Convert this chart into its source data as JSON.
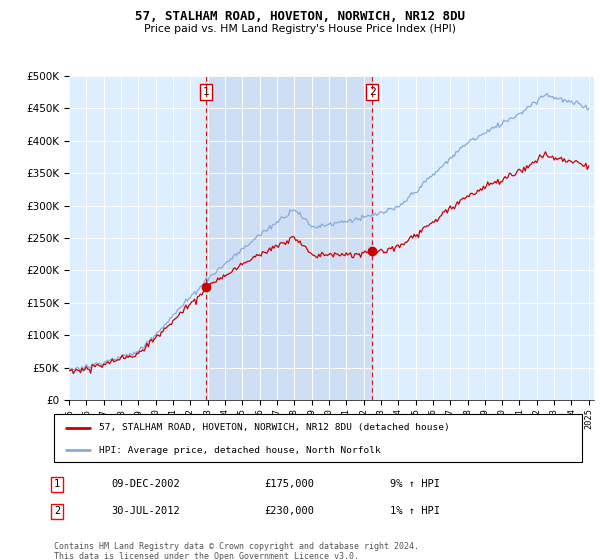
{
  "title": "57, STALHAM ROAD, HOVETON, NORWICH, NR12 8DU",
  "subtitle": "Price paid vs. HM Land Registry's House Price Index (HPI)",
  "legend_line1": "57, STALHAM ROAD, HOVETON, NORWICH, NR12 8DU (detached house)",
  "legend_line2": "HPI: Average price, detached house, North Norfolk",
  "transaction1_date": "09-DEC-2002",
  "transaction1_price": "£175,000",
  "transaction1_hpi": "9% ↑ HPI",
  "transaction2_date": "30-JUL-2012",
  "transaction2_price": "£230,000",
  "transaction2_hpi": "1% ↑ HPI",
  "footnote": "Contains HM Land Registry data © Crown copyright and database right 2024.\nThis data is licensed under the Open Government Licence v3.0.",
  "hpi_color": "#88aadd",
  "price_color": "#cc0000",
  "marker_color": "#cc0000",
  "vline_color": "#cc0000",
  "plot_bg_color": "#ddeeff",
  "shade_color": "#c8d8f0",
  "grid_color": "#ffffff",
  "ylim_min": 0,
  "ylim_max": 500000,
  "start_year": 1995,
  "end_year": 2025
}
